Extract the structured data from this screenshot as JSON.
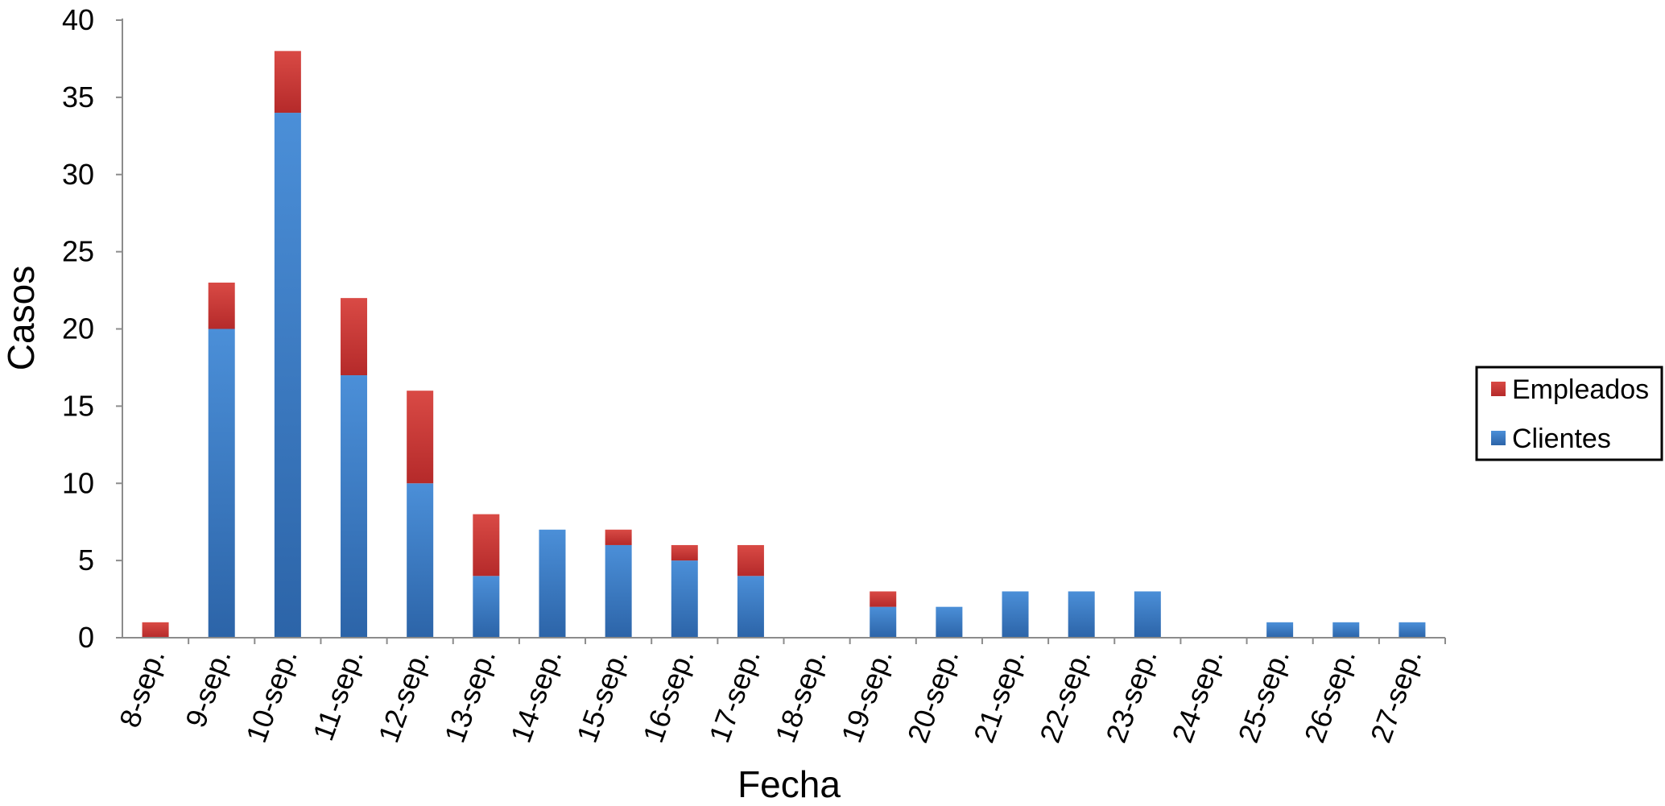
{
  "chart_data": {
    "type": "bar",
    "stacked": true,
    "categories": [
      "8-sep.",
      "9-sep.",
      "10-sep.",
      "11-sep.",
      "12-sep.",
      "13-sep.",
      "14-sep.",
      "15-sep.",
      "16-sep.",
      "17-sep.",
      "18-sep.",
      "19-sep.",
      "20-sep.",
      "21-sep.",
      "22-sep.",
      "23-sep.",
      "24-sep.",
      "25-sep.",
      "26-sep.",
      "27-sep."
    ],
    "series": [
      {
        "name": "Clientes",
        "color": "#3a7dc9",
        "values": [
          0,
          20,
          34,
          17,
          10,
          4,
          7,
          6,
          5,
          4,
          0,
          2,
          2,
          3,
          3,
          3,
          0,
          1,
          1,
          1
        ]
      },
      {
        "name": "Empleados",
        "color": "#d43a37",
        "values": [
          1,
          3,
          4,
          5,
          6,
          4,
          0,
          1,
          1,
          2,
          0,
          1,
          0,
          0,
          0,
          0,
          0,
          0,
          0,
          0
        ]
      }
    ],
    "legend_order": [
      "Empleados",
      "Clientes"
    ],
    "title": "",
    "xlabel": "Fecha",
    "ylabel": "Casos",
    "ylim": [
      0,
      40
    ],
    "yticks": [
      0,
      5,
      10,
      15,
      20,
      25,
      30,
      35,
      40
    ],
    "grid": false,
    "legend_position": "right"
  }
}
